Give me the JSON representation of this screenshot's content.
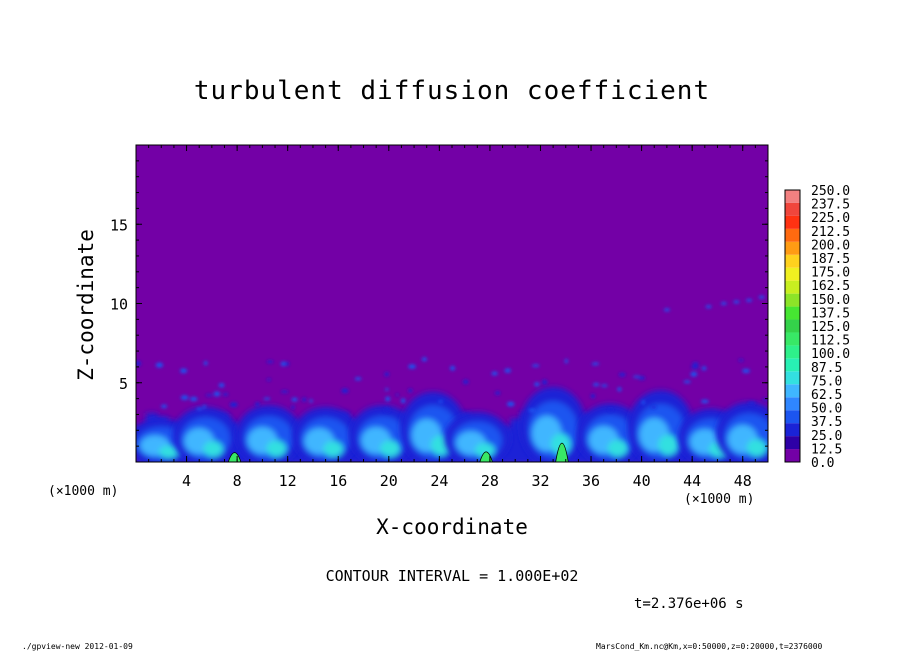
{
  "chart_data": {
    "type": "heatmap",
    "title": "turbulent diffusion coefficient",
    "xlabel": "X-coordinate",
    "ylabel": "Z-coordinate",
    "x_unit_note": "(×1000 m)",
    "xlim": [
      0,
      50
    ],
    "ylim": [
      0,
      20
    ],
    "x_ticks": [
      "4",
      "8",
      "12",
      "16",
      "20",
      "24",
      "28",
      "32",
      "36",
      "40",
      "44",
      "48"
    ],
    "y_ticks": [
      "5",
      "10",
      "15"
    ],
    "colorbar_levels": [
      "0.0",
      "12.5",
      "25.0",
      "37.5",
      "50.0",
      "62.5",
      "75.0",
      "87.5",
      "100.0",
      "112.5",
      "125.0",
      "137.5",
      "150.0",
      "162.5",
      "175.0",
      "187.5",
      "200.0",
      "212.5",
      "225.0",
      "237.5",
      "250.0"
    ],
    "colorbar_colors": [
      "#7300a6",
      "#2e00a6",
      "#1a23d6",
      "#1c55f0",
      "#2f86ff",
      "#3fb6ff",
      "#33e0e0",
      "#28f0b4",
      "#2ef08a",
      "#38e866",
      "#34d24a",
      "#46e632",
      "#8ce428",
      "#c8ef20",
      "#f0f020",
      "#ffd21e",
      "#ff9c14",
      "#ff6a10",
      "#ff3212",
      "#f0463c",
      "#f28080"
    ],
    "background_value": 0.0,
    "contour_interval": "CONTOUR INTERVAL = 1.000E+02",
    "time_label": "t=2.376e+06 s",
    "turbulent_plumes": [
      {
        "x": 2.0,
        "z": 2.6
      },
      {
        "x": 5.5,
        "z": 3.3
      },
      {
        "x": 10.5,
        "z": 3.4
      },
      {
        "x": 15.0,
        "z": 3.3
      },
      {
        "x": 19.5,
        "z": 3.4
      },
      {
        "x": 23.5,
        "z": 4.2
      },
      {
        "x": 27.0,
        "z": 3.0
      },
      {
        "x": 33.0,
        "z": 4.5
      },
      {
        "x": 37.5,
        "z": 3.5
      },
      {
        "x": 41.5,
        "z": 4.3
      },
      {
        "x": 45.5,
        "z": 3.2
      },
      {
        "x": 48.5,
        "z": 3.6
      }
    ],
    "strong_peaks": [
      {
        "x": 33.7,
        "z": 2.0,
        "value": 110
      },
      {
        "x": 27.7,
        "z": 0.9,
        "value": 95
      },
      {
        "x": 7.8,
        "z": 0.8,
        "value": 90
      }
    ]
  },
  "footer": {
    "left": "./gpview-new   2012-01-09",
    "right": "MarsCond_Km.nc@Km,x=0:50000,z=0:20000,t=2376000"
  }
}
